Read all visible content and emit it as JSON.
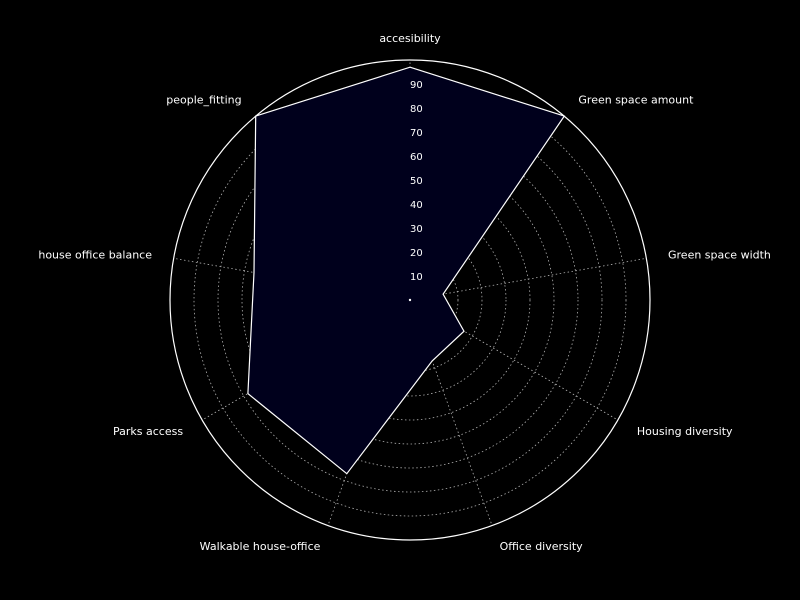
{
  "chart_data": {
    "type": "radar",
    "title": "",
    "categories": [
      "accesibility",
      "Green space amount",
      "Green space width",
      "Housing diversity",
      "Office diversity",
      "Walkable house-office",
      "Parks access",
      "house office balance",
      "people_fitting"
    ],
    "series": [
      {
        "values": [
          97,
          100,
          14,
          26,
          27,
          77,
          78,
          66,
          100
        ]
      }
    ],
    "rlim": [
      0,
      100
    ],
    "rticks": [
      10,
      20,
      30,
      40,
      50,
      60,
      70,
      80,
      90
    ],
    "rtick_labels": [
      "10",
      "20",
      "30",
      "40",
      "50",
      "60",
      "70",
      "80",
      "90"
    ],
    "grid": true,
    "colors": {
      "background": "#000000",
      "fill": "#00001c",
      "line": "#ffffff",
      "grid": "#b0b0b0",
      "text": "#ffffff"
    }
  }
}
